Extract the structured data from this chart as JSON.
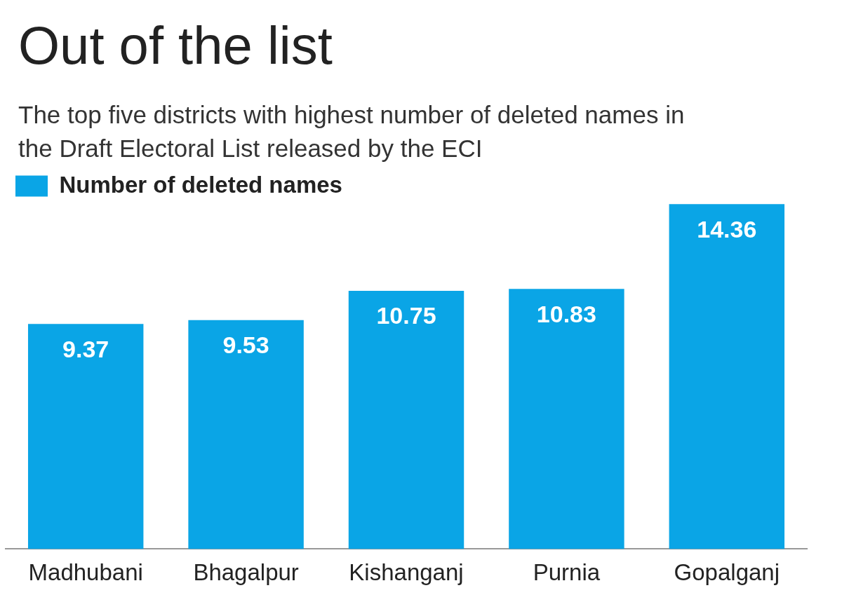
{
  "chart_data": {
    "type": "bar",
    "title": "Out of the list",
    "subtitle": "The top five districts with highest number of deleted names in the Draft Electoral List released by the ECI",
    "categories": [
      "Madhubani",
      "Bhagalpur",
      "Kishanganj",
      "Purnia",
      "Gopalganj"
    ],
    "series": [
      {
        "name": "Number of deleted names",
        "color": "#0aa5e6",
        "values": [
          9.37,
          9.53,
          10.75,
          10.83,
          14.36
        ]
      }
    ],
    "tick_labels": "x",
    "data_labels": true,
    "grid": false,
    "legend": "top left"
  }
}
